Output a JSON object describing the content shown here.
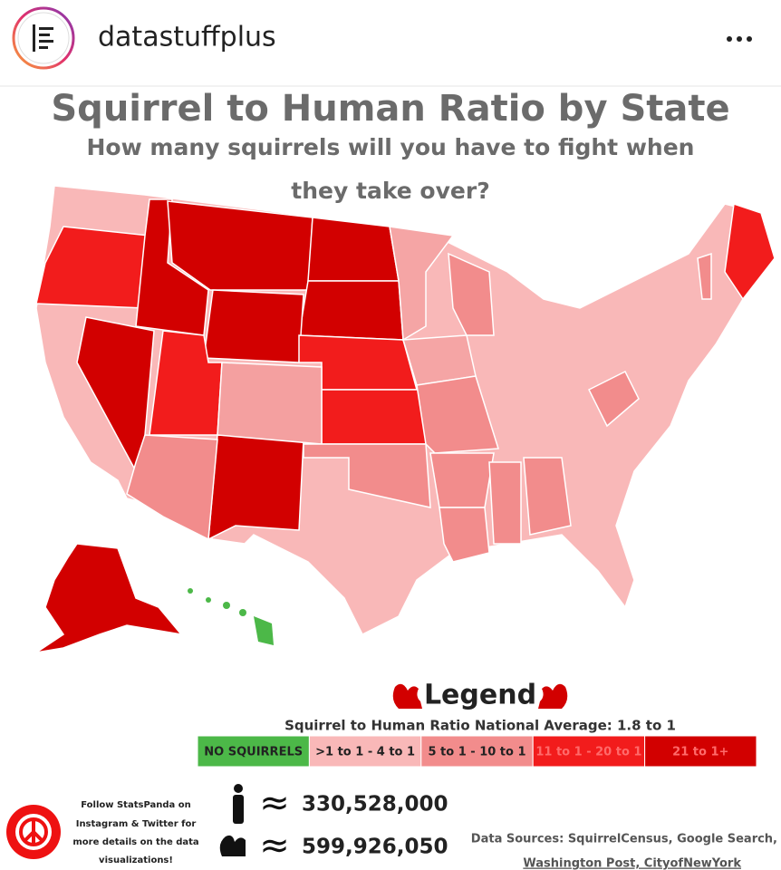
{
  "header": {
    "account": "datastuffplus"
  },
  "title": "Squirrel to Human Ratio by State",
  "subtitle": [
    "How many squirrels will you have to fight when",
    "they take over?"
  ],
  "legend": {
    "title": "Legend",
    "subtitle": "Squirrel to Human Ratio National Average: 1.8 to 1",
    "items": [
      {
        "label": "NO SQUIRRELS",
        "color": "#4cb848"
      },
      {
        "label": ">1 to 1 - 4 to 1",
        "color": "#f9b8b8"
      },
      {
        "label": "5 to 1 - 10 to 1",
        "color": "#f28c8c"
      },
      {
        "label": "11 to 1 - 20 to 1",
        "color": "#f21c1c"
      },
      {
        "label": "21 to 1+",
        "color": "#d20000"
      }
    ]
  },
  "footer": {
    "follow": [
      "Follow StatsPanda on",
      "Instagram & Twitter for",
      "more details on the data",
      "visualizations!"
    ],
    "approx": "≈",
    "humans": "330,528,000",
    "squirrels": "599,926,050",
    "sources": [
      "Data Sources: SquirrelCensus, Google Search,",
      "Washington Post, CityofNewYork"
    ]
  }
}
